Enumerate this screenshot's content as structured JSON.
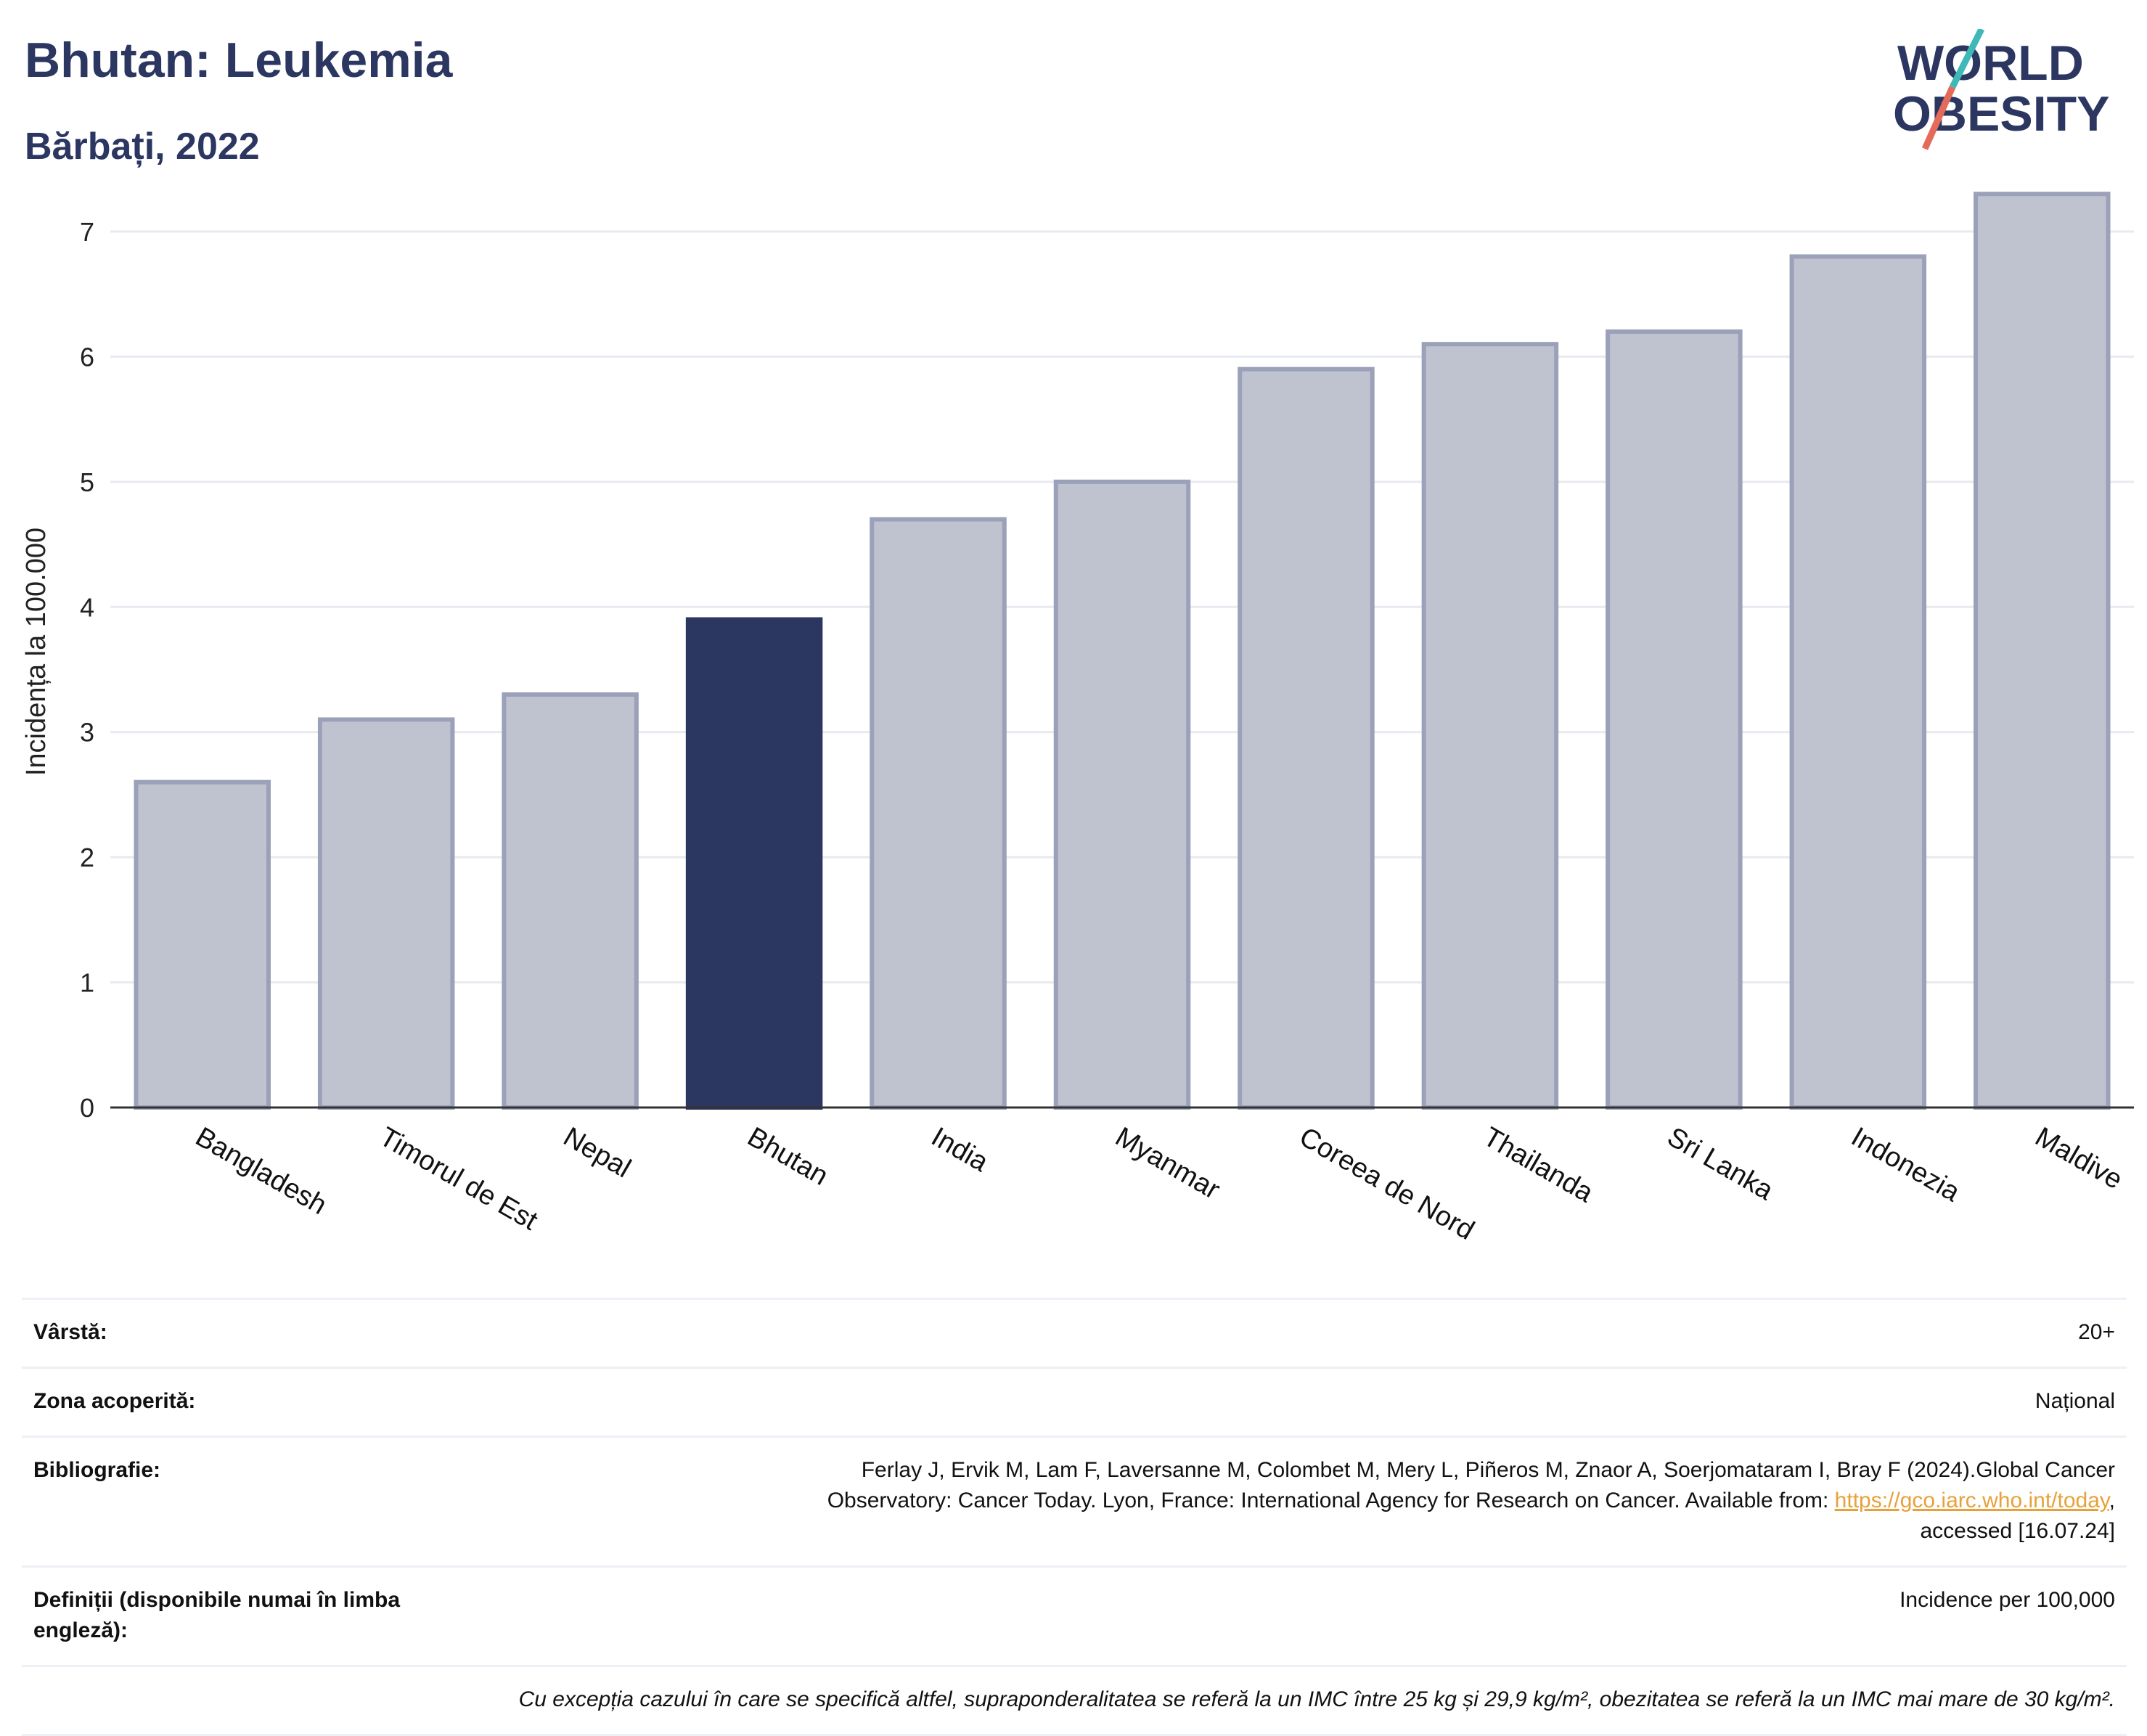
{
  "header": {
    "title": "Bhutan: Leukemia",
    "subtitle": "Bărbați, 2022",
    "logo_text_top": "WORLD",
    "logo_text_bottom": "OBESITY"
  },
  "colors": {
    "highlight": "#2b3661",
    "bar": "#bfc3d0",
    "bar_border": "#9aa1b8",
    "title": "#2b3661",
    "logo_teal": "#3fb8b8",
    "logo_red": "#e56a5a"
  },
  "chart_data": {
    "type": "bar",
    "title": "Bhutan: Leukemia",
    "subtitle": "Bărbați, 2022",
    "ylabel": "Incidența la 100.000",
    "xlabel": "",
    "ylim": [
      0,
      7.4
    ],
    "yticks": [
      0,
      1,
      2,
      3,
      4,
      5,
      6,
      7
    ],
    "grid": true,
    "highlight": "Bhutan",
    "categories": [
      "Bangladesh",
      "Timorul de Est",
      "Nepal",
      "Bhutan",
      "India",
      "Myanmar",
      "Coreea de Nord",
      "Thailanda",
      "Sri Lanka",
      "Indonezia",
      "Maldive"
    ],
    "values": [
      2.6,
      3.1,
      3.3,
      3.9,
      4.7,
      5.0,
      5.9,
      6.1,
      6.2,
      6.8,
      7.3
    ]
  },
  "info": {
    "age_label": "Vârstă:",
    "age_value": "20+",
    "zone_label": "Zona acoperită:",
    "zone_value": "Național",
    "bib_label": "Bibliografie:",
    "bib_text_1": "Ferlay J, Ervik M, Lam F, Laversanne M, Colombet M, Mery L, Piñeros M, Znaor A, Soerjomataram I, Bray F (2024).Global Cancer",
    "bib_text_2": "Observatory: Cancer Today. Lyon, France: International Agency for Research on Cancer. Available from: ",
    "bib_link": "https://gco.iarc.who.int/today",
    "bib_text_3": ",",
    "bib_text_4": "accessed [16.07.24]",
    "def_label": "Definiții (disponibile numai în limba engleză):",
    "def_value": "Incidence per 100,000",
    "note": "Cu excepția cazului în care se specifică altfel, supraponderalitatea se referă la un IMC între 25 kg și 29,9 kg/m², obezitatea se referă la un IMC mai mare de 30 kg/m²."
  }
}
